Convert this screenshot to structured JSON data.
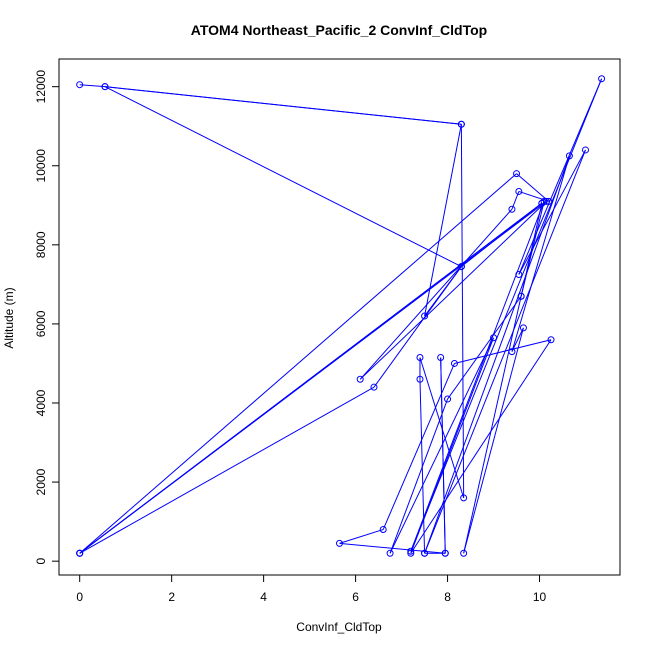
{
  "chart_data": {
    "type": "line",
    "title": "ATOM4 Northeast_Pacific_2 ConvInf_CldTop",
    "xlabel": "ConvInf_CldTop",
    "ylabel": "Altitude (m)",
    "xlim": [
      -0.45,
      11.75
    ],
    "ylim": [
      -350,
      12700
    ],
    "xticks": [
      0,
      2,
      4,
      6,
      8,
      10
    ],
    "yticks": [
      0,
      2000,
      4000,
      6000,
      8000,
      10000,
      12000
    ],
    "grid": false,
    "legend": "none",
    "colors": {
      "series": "#0000ff",
      "axis": "#000000",
      "background": "#ffffff"
    },
    "markers": "open-circle",
    "series": [
      {
        "x": [
          0.0,
          0.55,
          8.3,
          0.55,
          8.3,
          10.05,
          0.0,
          10.15,
          6.1,
          9.4,
          9.55,
          10.2,
          9.5,
          0.0,
          6.4,
          8.3,
          7.5,
          8.3,
          8.35,
          7.4,
          7.4,
          7.5,
          7.95,
          7.85,
          7.95,
          5.65,
          6.6,
          8.15,
          10.25,
          7.2,
          9.0,
          6.75,
          8.0,
          9.6,
          8.35,
          9.65,
          9.4,
          10.65,
          7.5,
          11.0,
          9.55,
          11.35,
          7.2,
          10.1,
          9.6,
          10.05,
          0.0
        ],
        "y": [
          12050,
          12000,
          11050,
          12000,
          7450,
          9050,
          200,
          9100,
          4600,
          8900,
          9350,
          9100,
          9800,
          200,
          4400,
          7450,
          6200,
          11050,
          1600,
          5150,
          4600,
          200,
          200,
          5150,
          200,
          450,
          800,
          5000,
          5600,
          200,
          5650,
          200,
          4100,
          6700,
          200,
          5900,
          5300,
          10250,
          200,
          10400,
          7250,
          12200,
          250,
          9100,
          6700,
          9050,
          200
        ]
      }
    ]
  }
}
